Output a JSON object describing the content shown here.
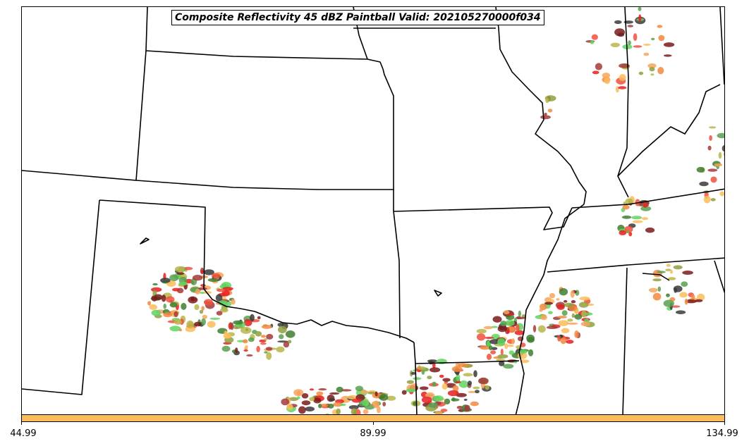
{
  "map": {
    "title": "Composite Reflectivity 45 dBZ Paintball Valid: 202105270000f034",
    "region": "South-Central United States",
    "layers": [
      "state-boundaries",
      "reflectivity-paintball"
    ],
    "paint_colors": [
      "#7a1a1a",
      "#a33a3a",
      "#e52020",
      "#f0503c",
      "#f28a40",
      "#f7a55a",
      "#fbbd5a",
      "#b9b64a",
      "#8fa040",
      "#3f7f2f",
      "#58a050",
      "#5fd55f",
      "#3a3a3a"
    ]
  },
  "colorbar": {
    "color": "#fbbd5a",
    "ticks": [
      "44.99",
      "89.99",
      "134.99"
    ]
  }
}
